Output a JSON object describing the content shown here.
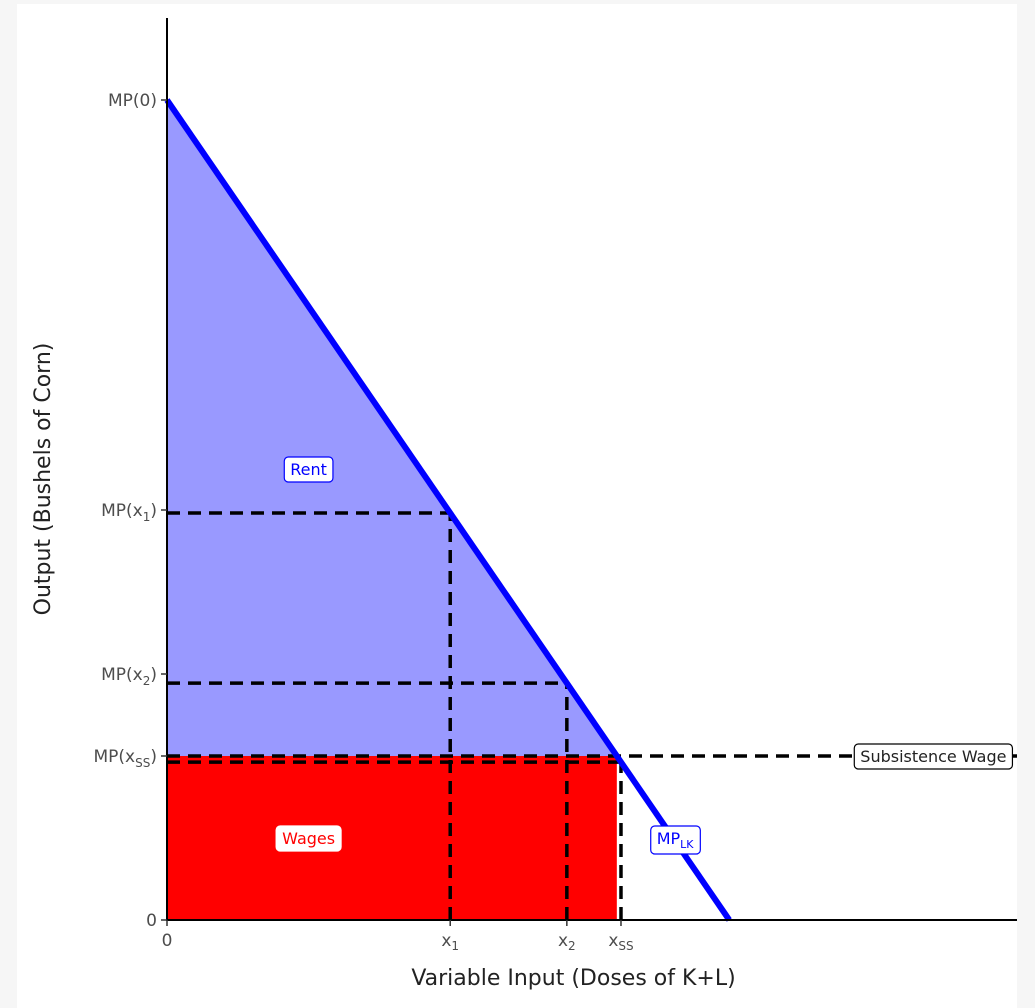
{
  "chart_data": {
    "type": "area",
    "xlabel": "Variable Input (Doses of K+L)",
    "ylabel": "Output (Bushels of Corn)",
    "xlim": [
      0,
      1
    ],
    "ylim": [
      0,
      1
    ],
    "x_ticks": [
      {
        "base": "0",
        "sub": "",
        "value": 0
      },
      {
        "base": "x",
        "sub": "1",
        "value": 0.34
      },
      {
        "base": "x",
        "sub": "2",
        "value": 0.48
      },
      {
        "base": "x",
        "sub": "SS",
        "value": 0.545
      }
    ],
    "y_ticks": [
      {
        "base": "0",
        "sub": "",
        "value": 0
      },
      {
        "base": "MP(x",
        "sub": "SS",
        "close": ")",
        "value": 0.2
      },
      {
        "base": "MP(x",
        "sub": "2",
        "close": ")",
        "value": 0.3
      },
      {
        "base": "MP(x",
        "sub": "1",
        "close": ")",
        "value": 0.5
      },
      {
        "base": "MP(0)",
        "sub": "",
        "close": "",
        "value": 1.0
      }
    ],
    "mp_line": {
      "x": [
        0,
        0.675
      ],
      "y": [
        1.0,
        0.0
      ],
      "color": "#0000ff"
    },
    "subsistence_wage": 0.2,
    "colors": {
      "rent": "#9999ff",
      "wages": "#ff0000",
      "line": "#0000ff"
    },
    "labels": {
      "rent": {
        "text": "Rent",
        "x": 0.17,
        "y": 0.55,
        "color": "#0000ff"
      },
      "wages": {
        "text": "Wages",
        "x": 0.17,
        "y": 0.1,
        "color": "#ffffff",
        "fill": "#ff0000"
      },
      "mp_base": "MP",
      "mp_sub": "LK",
      "mp_pos": {
        "x": 0.61,
        "y": 0.1
      },
      "subsistence": {
        "text": "Subsistence Wage",
        "x": 0.92,
        "y": 0.2
      }
    }
  }
}
